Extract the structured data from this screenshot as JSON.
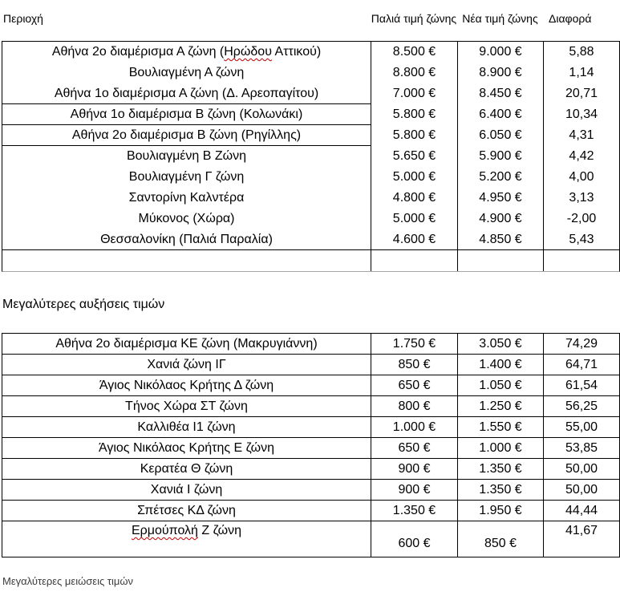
{
  "header": {
    "region_label": "Περιοχή",
    "old_price_label": "Παλιά τιμή ζώνης",
    "new_price_label": "Νέα τιμή ζώνης",
    "diff_label": "Διαφορά"
  },
  "sections": {
    "increases_title": "Μεγαλύτερες αυξήσεις τιμών",
    "decreases_title": "Μεγαλύτερες μειώσεις τιμών"
  },
  "colors": {
    "border": "#000000",
    "table1_bottom_border": "#a6a6a6",
    "spellcheck_red": "#c00000",
    "text": "#000000"
  },
  "table1": {
    "rows": [
      {
        "name": "Αθήνα 2ο διαμέρισμα Α ζώνη (Ηρώδου Αττικού)",
        "spell": {
          "pre": "Αθήνα 2ο διαμέρισμα Α ζώνη (",
          "word": "Ηρώδου",
          "post": " Αττικού)"
        },
        "old": "8.500 €",
        "new": "9.000 €",
        "diff": "5,88"
      },
      {
        "name": "Βουλιαγμένη Α ζώνη",
        "old": "8.800 €",
        "new": "8.900 €",
        "diff": "1,14"
      },
      {
        "name": "Αθήνα 1ο διαμέρισμα Α ζώνη (Δ. Αρεοπαγίτου)",
        "old": "7.000 €",
        "new": "8.450 €",
        "diff": "20,71"
      },
      {
        "name": "Αθήνα 1ο διαμέρισμα Β ζώνη (Κολωνάκι)",
        "old": "5.800 €",
        "new": "6.400 €",
        "diff": "10,34"
      },
      {
        "name": "Αθήνα 2ο διαμέρισμα Β ζώνη (Ρηγίλλης)",
        "old": "5.800 €",
        "new": "6.050 €",
        "diff": "4,31"
      },
      {
        "name": "Βουλιαγμένη Β Ζώνη",
        "old": "5.650 €",
        "new": "5.900 €",
        "diff": "4,42"
      },
      {
        "name": "Βουλιαγμένη Γ ζώνη",
        "old": "5.000 €",
        "new": "5.200 €",
        "diff": "4,00"
      },
      {
        "name": "Σαντορίνη Καλντέρα",
        "old": "4.800 €",
        "new": "4.950 €",
        "diff": "3,13"
      },
      {
        "name": "Μύκονος (Χώρα)",
        "old": "5.000 €",
        "new": "4.900 €",
        "diff": "-2,00"
      },
      {
        "name": "Θεσσαλονίκη (Παλιά Παραλία)",
        "old": "4.600 €",
        "new": "4.850 €",
        "diff": "5,43"
      },
      {
        "name": "",
        "old": "",
        "new": "",
        "diff": "",
        "empty": true
      }
    ]
  },
  "table2": {
    "rows": [
      {
        "name": "Αθήνα 2ο διαμέρισμα ΚΕ ζώνη (Μακρυγιάννη)",
        "old": "1.750 €",
        "new": "3.050 €",
        "diff": "74,29"
      },
      {
        "name": "Χανιά ζώνη ΙΓ",
        "old": "850 €",
        "new": "1.400 €",
        "diff": "64,71"
      },
      {
        "name": "Άγιος Νικόλαος Κρήτης Δ ζώνη",
        "old": "650 €",
        "new": "1.050 €",
        "diff": "61,54"
      },
      {
        "name": "Τήνος Χώρα ΣΤ ζώνη",
        "old": "800 €",
        "new": "1.250 €",
        "diff": "56,25"
      },
      {
        "name": "Καλλιθέα Ι1 ζώνη",
        "old": "1.000 €",
        "new": "1.550 €",
        "diff": "55,00"
      },
      {
        "name": "Άγιος Νικόλαος Κρήτης Ε ζώνη",
        "old": "650 €",
        "new": "1.000 €",
        "diff": "53,85"
      },
      {
        "name": "Κερατέα Θ ζώνη",
        "old": "900 €",
        "new": "1.350 €",
        "diff": "50,00"
      },
      {
        "name": "Χανιά Ι ζώνη",
        "old": "900 €",
        "new": "1.350 €",
        "diff": "50,00"
      },
      {
        "name": "Σπέτσες ΚΔ ζώνη",
        "old": "1.350 €",
        "new": "1.950 €",
        "diff": "44,44"
      },
      {
        "name": "Ερμούπολή Ζ ζώνη",
        "spell": {
          "pre": "",
          "word": "Ερμούπολή",
          "post": " Ζ ζώνη"
        },
        "old": "600 €",
        "new": "850 €",
        "diff": "41,67",
        "tall": true
      }
    ]
  }
}
